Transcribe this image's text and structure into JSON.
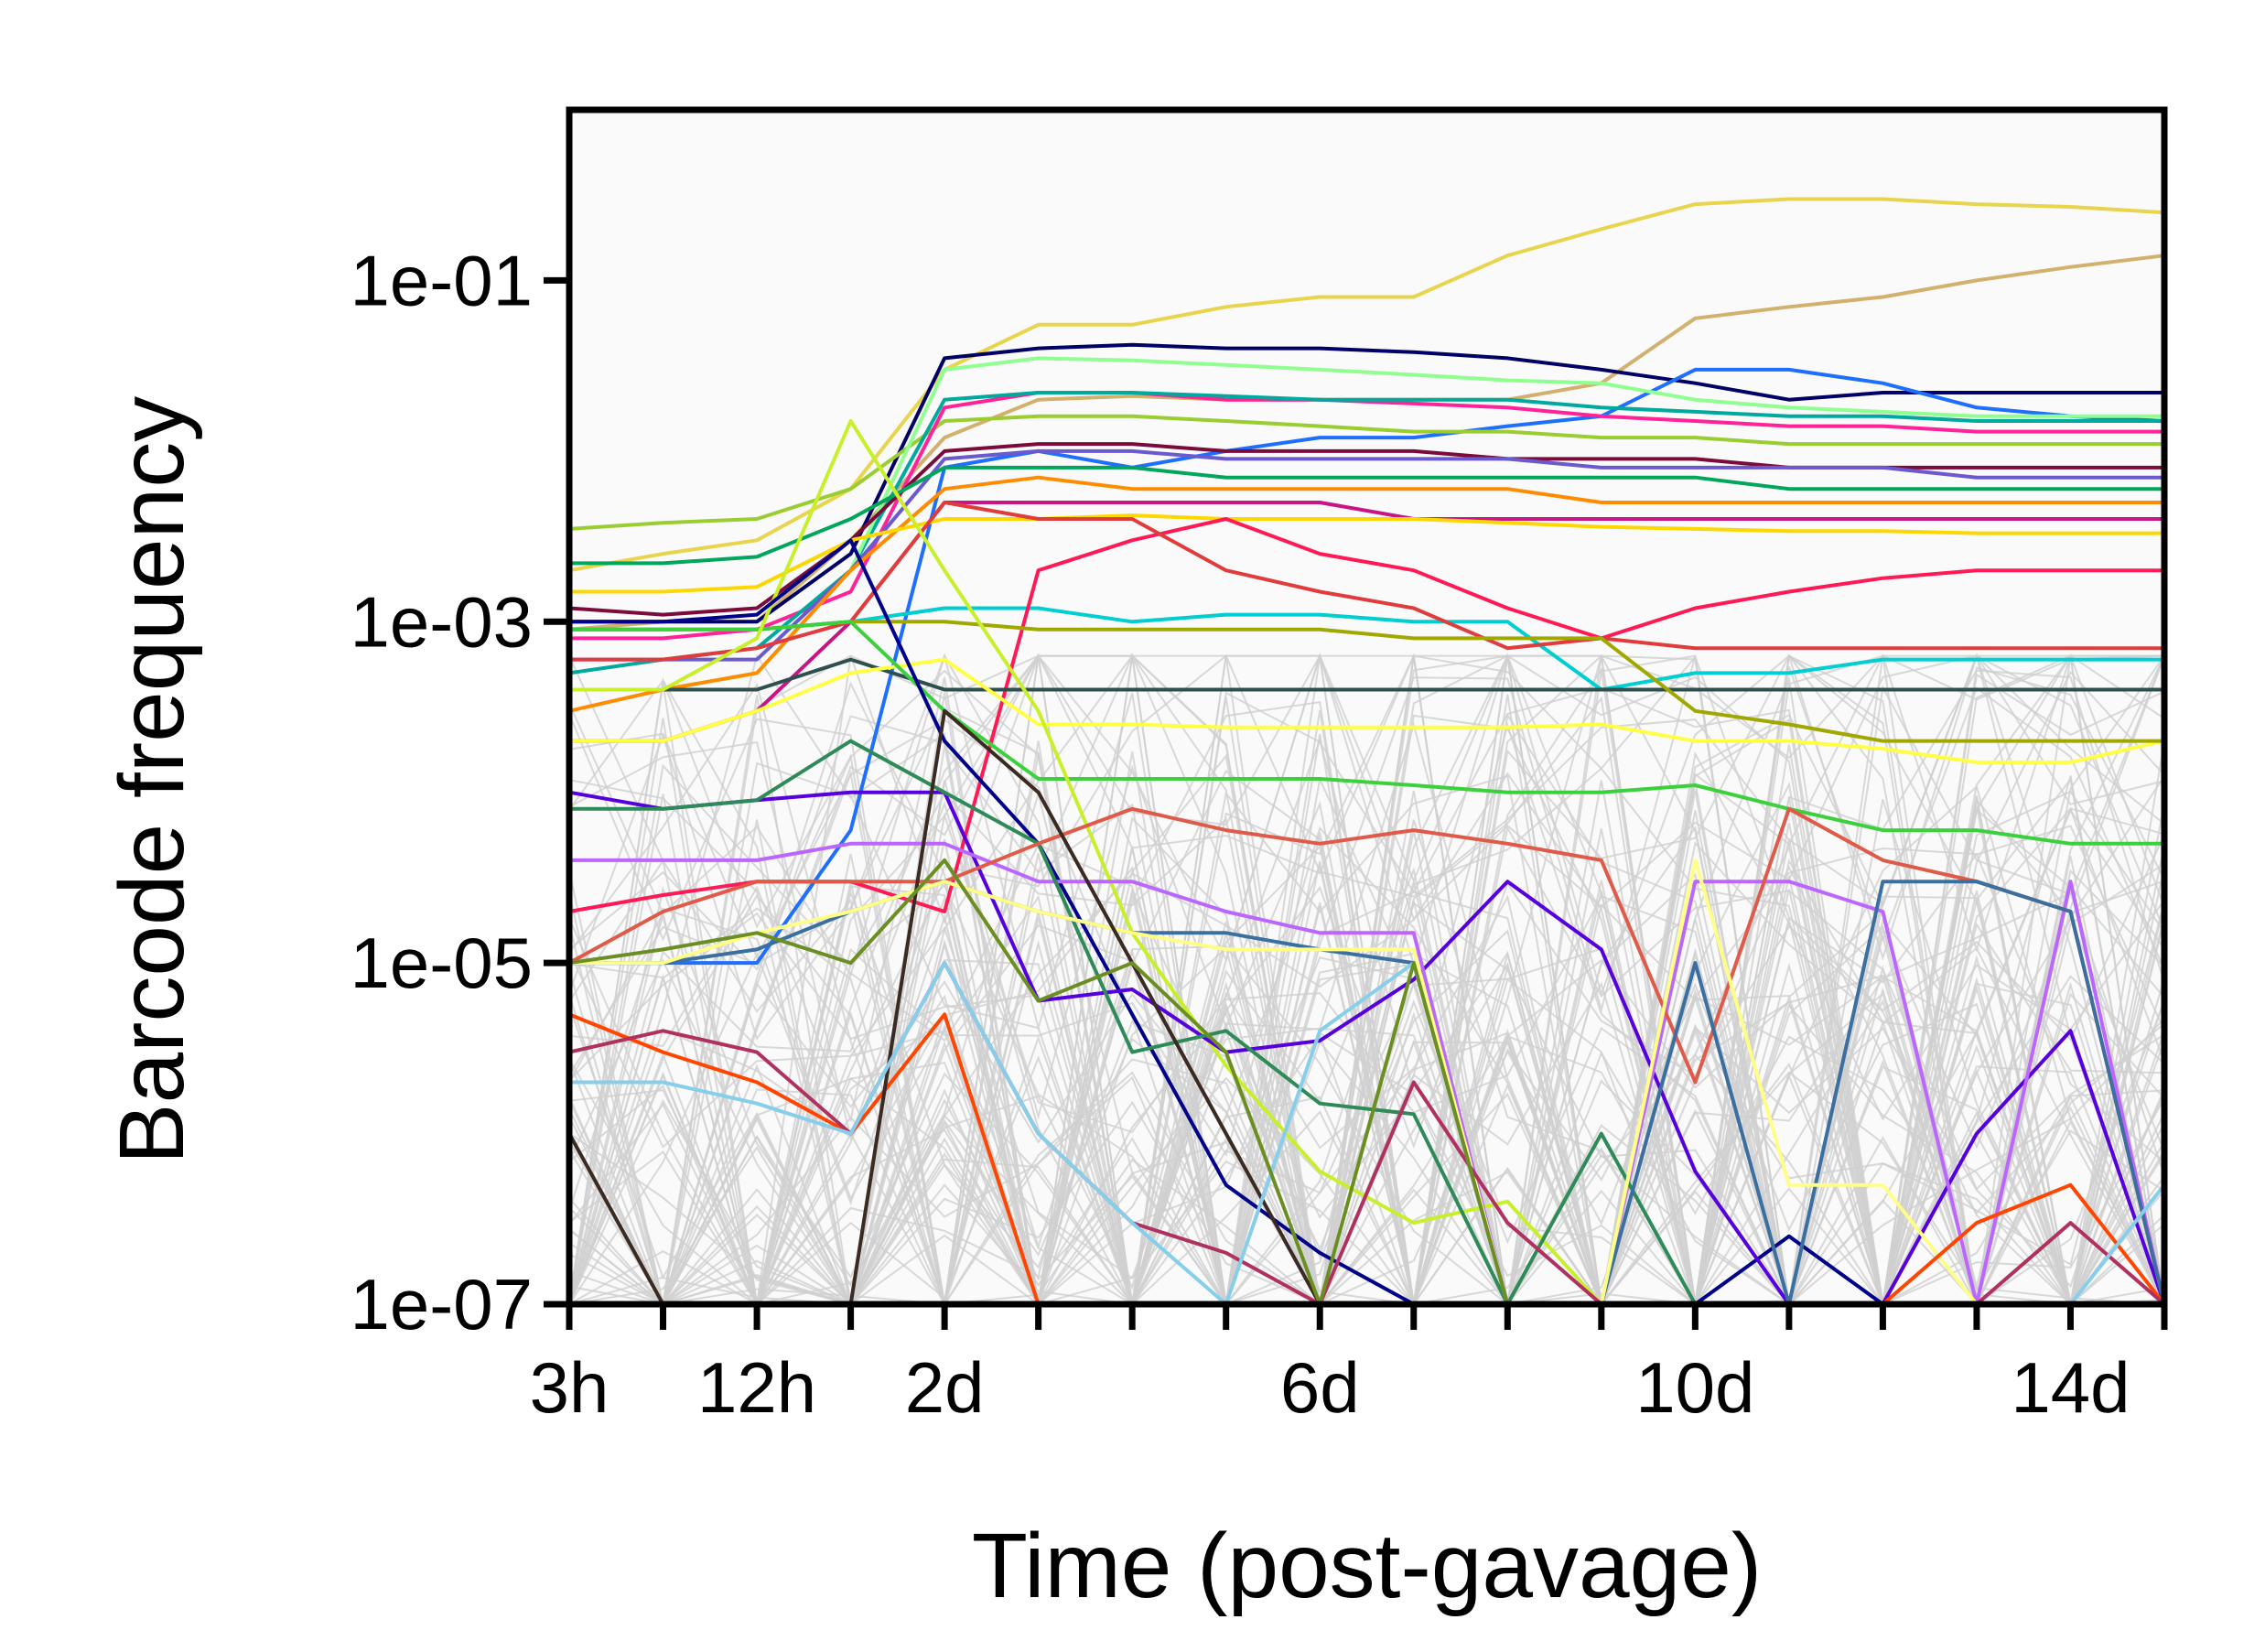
{
  "chart_data": {
    "type": "line",
    "title": "",
    "xlabel": "Time (post-gavage)",
    "ylabel": "Barcode frequency",
    "y_scale": "log",
    "ylim": [
      1e-07,
      1
    ],
    "x_points": [
      "3h",
      "6h",
      "12h",
      "1d",
      "2d",
      "3d",
      "4d",
      "5d",
      "6d",
      "7d",
      "8d",
      "9d",
      "10d",
      "11d",
      "12d",
      "13d",
      "14d",
      "15d"
    ],
    "x_tick_labels": [
      {
        "at": "3h",
        "label": "3h"
      },
      {
        "at": "12h",
        "label": "12h"
      },
      {
        "at": "2d",
        "label": "2d"
      },
      {
        "at": "6d",
        "label": "6d"
      },
      {
        "at": "10d",
        "label": "10d"
      },
      {
        "at": "14d",
        "label": "14d"
      }
    ],
    "y_ticks": [
      1e-07,
      1e-05,
      0.001,
      0.1
    ],
    "y_tick_labels": [
      "1e-07",
      "1e-05",
      "1e-03",
      "1e-01"
    ],
    "background_series_color": "#cfcfcf",
    "plot_background": "#fafafa",
    "grid": false,
    "legend": "none",
    "series": [
      {
        "color": "#e8d44d",
        "values": [
          0.002,
          0.0025,
          0.003,
          0.006,
          0.03,
          0.055,
          0.055,
          0.07,
          0.08,
          0.08,
          0.14,
          0.2,
          0.28,
          0.3,
          0.3,
          0.28,
          0.27,
          0.25
        ]
      },
      {
        "color": "#d2b06e",
        "values": [
          0.0009,
          0.001,
          0.001,
          0.003,
          0.012,
          0.02,
          0.021,
          0.02,
          0.02,
          0.02,
          0.02,
          0.025,
          0.06,
          0.07,
          0.08,
          0.1,
          0.12,
          0.14
        ]
      },
      {
        "color": "#000066",
        "values": [
          0.001,
          0.001,
          0.001,
          0.0025,
          0.035,
          0.04,
          0.042,
          0.04,
          0.04,
          0.038,
          0.035,
          0.03,
          0.025,
          0.02,
          0.022,
          0.022,
          0.022,
          0.022
        ]
      },
      {
        "color": "#1f6fff",
        "values": [
          1e-05,
          1e-05,
          1e-05,
          6e-05,
          0.008,
          0.01,
          0.008,
          0.01,
          0.012,
          0.012,
          0.014,
          0.016,
          0.03,
          0.03,
          0.025,
          0.018,
          0.016,
          0.015
        ]
      },
      {
        "color": "#9acd32",
        "values": [
          0.0035,
          0.0038,
          0.004,
          0.006,
          0.015,
          0.016,
          0.016,
          0.015,
          0.014,
          0.013,
          0.013,
          0.012,
          0.012,
          0.011,
          0.011,
          0.011,
          0.011,
          0.011
        ]
      },
      {
        "color": "#ff2299",
        "values": [
          0.0008,
          0.0008,
          0.0009,
          0.0015,
          0.018,
          0.022,
          0.022,
          0.02,
          0.02,
          0.019,
          0.018,
          0.016,
          0.015,
          0.014,
          0.014,
          0.013,
          0.013,
          0.013
        ]
      },
      {
        "color": "#00a99d",
        "values": [
          0.0005,
          0.0006,
          0.0007,
          0.002,
          0.02,
          0.022,
          0.022,
          0.021,
          0.02,
          0.02,
          0.02,
          0.018,
          0.017,
          0.016,
          0.016,
          0.015,
          0.015,
          0.015
        ]
      },
      {
        "color": "#8fff8f",
        "values": [
          0.0004,
          0.0004,
          0.0005,
          0.002,
          0.03,
          0.035,
          0.034,
          0.032,
          0.03,
          0.028,
          0.026,
          0.025,
          0.02,
          0.018,
          0.017,
          0.016,
          0.016,
          0.016
        ]
      },
      {
        "color": "#7a0b3b",
        "values": [
          0.0012,
          0.0011,
          0.0012,
          0.003,
          0.01,
          0.011,
          0.011,
          0.01,
          0.01,
          0.01,
          0.009,
          0.009,
          0.009,
          0.008,
          0.008,
          0.008,
          0.008,
          0.008
        ]
      },
      {
        "color": "#6a5acd",
        "values": [
          0.0006,
          0.0006,
          0.0006,
          0.002,
          0.009,
          0.01,
          0.01,
          0.009,
          0.009,
          0.009,
          0.009,
          0.008,
          0.008,
          0.008,
          0.008,
          0.007,
          0.007,
          0.007
        ]
      },
      {
        "color": "#00a65a",
        "values": [
          0.0022,
          0.0022,
          0.0024,
          0.004,
          0.008,
          0.008,
          0.008,
          0.007,
          0.007,
          0.007,
          0.007,
          0.007,
          0.007,
          0.006,
          0.006,
          0.006,
          0.006,
          0.006
        ]
      },
      {
        "color": "#ff8c00",
        "values": [
          0.0003,
          0.0004,
          0.0005,
          0.002,
          0.006,
          0.007,
          0.006,
          0.006,
          0.006,
          0.006,
          0.006,
          0.005,
          0.005,
          0.005,
          0.005,
          0.005,
          0.005,
          0.005
        ]
      },
      {
        "color": "#c71585",
        "values": [
          0.0002,
          0.0002,
          0.0003,
          0.001,
          0.005,
          0.005,
          0.005,
          0.005,
          0.005,
          0.004,
          0.004,
          0.004,
          0.004,
          0.004,
          0.004,
          0.004,
          0.004,
          0.004
        ]
      },
      {
        "color": "#ffd700",
        "values": [
          0.0015,
          0.0015,
          0.0016,
          0.003,
          0.004,
          0.004,
          0.0042,
          0.004,
          0.004,
          0.004,
          0.0038,
          0.0036,
          0.0035,
          0.0034,
          0.0034,
          0.0033,
          0.0033,
          0.0033
        ]
      },
      {
        "color": "#00ced1",
        "values": [
          0.0009,
          0.0009,
          0.0009,
          0.001,
          0.0012,
          0.0012,
          0.001,
          0.0011,
          0.0011,
          0.001,
          0.001,
          0.0004,
          0.0005,
          0.0005,
          0.0006,
          0.0006,
          0.0006,
          0.0006
        ]
      },
      {
        "color": "#ff1a55",
        "values": [
          2e-05,
          2.5e-05,
          3e-05,
          3e-05,
          2e-05,
          0.002,
          0.003,
          0.004,
          0.0025,
          0.002,
          0.0012,
          0.0008,
          0.0012,
          0.0015,
          0.0018,
          0.002,
          0.002,
          0.002
        ]
      },
      {
        "color": "#e03c3c",
        "values": [
          0.0006,
          0.0006,
          0.0007,
          0.001,
          0.005,
          0.004,
          0.004,
          0.002,
          0.0015,
          0.0012,
          0.0007,
          0.0008,
          0.0007,
          0.0007,
          0.0007,
          0.0007,
          0.0007,
          0.0007
        ]
      },
      {
        "color": "#2f4f4f",
        "values": [
          0.0004,
          0.0004,
          0.0004,
          0.0006,
          0.0004,
          0.0004,
          0.0004,
          0.0004,
          0.0004,
          0.0004,
          0.0004,
          0.0004,
          0.0004,
          0.0004,
          0.0004,
          0.0004,
          0.0004,
          0.0004
        ]
      },
      {
        "color": "#ffff44",
        "values": [
          0.0002,
          0.0002,
          0.0003,
          0.0005,
          0.0006,
          0.00025,
          0.00025,
          0.00024,
          0.00024,
          0.00024,
          0.00024,
          0.00025,
          0.0002,
          0.0002,
          0.00018,
          0.00015,
          0.00015,
          0.0002
        ]
      },
      {
        "color": "#a0a800",
        "values": [
          0.0009,
          0.0009,
          0.0009,
          0.001,
          0.001,
          0.0009,
          0.0009,
          0.0009,
          0.0009,
          0.0008,
          0.0008,
          0.0008,
          0.0003,
          0.00025,
          0.0002,
          0.0002,
          0.0002,
          0.0002
        ]
      },
      {
        "color": "#3cd13c",
        "values": [
          0.0009,
          0.0009,
          0.0009,
          0.001,
          0.0003,
          0.00012,
          0.00012,
          0.00012,
          0.00012,
          0.00011,
          0.0001,
          0.0001,
          0.00011,
          8e-05,
          6e-05,
          6e-05,
          5e-05,
          5e-05
        ]
      },
      {
        "color": "#c8f02a",
        "values": [
          0.0004,
          0.0004,
          0.0008,
          0.015,
          0.002,
          0.0003,
          1.5e-05,
          2.5e-06,
          6e-07,
          3e-07,
          4e-07,
          1e-07,
          1e-07,
          1e-07,
          1e-07,
          1e-07,
          1e-07,
          1e-07
        ]
      },
      {
        "color": "#00008b",
        "values": [
          0.001,
          0.001,
          0.0011,
          0.003,
          0.0002,
          5e-05,
          5e-06,
          5e-07,
          2e-07,
          1e-07,
          1e-07,
          1e-07,
          1e-07,
          2.5e-07,
          1e-07,
          1e-07,
          1e-07,
          1e-07
        ]
      },
      {
        "color": "#5500dd",
        "values": [
          0.0001,
          8e-05,
          9e-05,
          0.0001,
          0.0001,
          6e-06,
          7e-06,
          3e-06,
          3.5e-06,
          8e-06,
          3e-05,
          1.2e-05,
          6e-07,
          1e-07,
          1e-07,
          1e-06,
          4e-06,
          1e-07
        ]
      },
      {
        "color": "#bb66ff",
        "values": [
          4e-05,
          4e-05,
          4e-05,
          5e-05,
          5e-05,
          3e-05,
          3e-05,
          2e-05,
          1.5e-05,
          1.5e-05,
          1e-07,
          1e-07,
          3e-05,
          3e-05,
          2e-05,
          1e-07,
          3e-05,
          1e-07
        ]
      },
      {
        "color": "#2e8b57",
        "values": [
          8e-05,
          8e-05,
          9e-05,
          0.0002,
          0.0001,
          5e-05,
          3e-06,
          4e-06,
          1.5e-06,
          1.3e-06,
          1e-07,
          1e-06,
          1e-07,
          1e-07,
          1e-07,
          1e-07,
          1e-07,
          1e-07
        ]
      },
      {
        "color": "#e05a4a",
        "values": [
          1e-05,
          2e-05,
          3e-05,
          3e-05,
          3e-05,
          5e-05,
          8e-05,
          6e-05,
          5e-05,
          6e-05,
          5e-05,
          4e-05,
          2e-06,
          8e-05,
          4e-05,
          3e-05,
          2e-05,
          1e-07
        ]
      },
      {
        "color": "#3a6f9f",
        "values": [
          1e-05,
          1e-05,
          1.2e-05,
          2e-05,
          3e-05,
          2e-05,
          1.5e-05,
          1.5e-05,
          1.2e-05,
          1e-05,
          1e-07,
          1e-07,
          1e-05,
          1e-07,
          3e-05,
          3e-05,
          2e-05,
          1e-07
        ]
      },
      {
        "color": "#ffff88",
        "values": [
          1e-05,
          1e-05,
          1.5e-05,
          2e-05,
          3e-05,
          2e-05,
          1.5e-05,
          1.2e-05,
          1.2e-05,
          1.2e-05,
          1e-07,
          1e-07,
          4e-05,
          5e-07,
          5e-07,
          1e-07,
          1e-07,
          1e-07
        ]
      },
      {
        "color": "#ff4500",
        "values": [
          5e-06,
          3e-06,
          2e-06,
          1e-06,
          5e-06,
          1e-07,
          1e-07,
          1e-07,
          1e-07,
          1e-07,
          1e-07,
          1e-07,
          1e-07,
          1e-07,
          1e-07,
          3e-07,
          5e-07,
          1e-07
        ]
      },
      {
        "color": "#3b2a22",
        "values": [
          1e-06,
          1e-07,
          1e-07,
          1e-07,
          0.0003,
          0.0001,
          1e-05,
          1e-06,
          1e-07,
          1e-07,
          1e-07,
          1e-07,
          1e-07,
          1e-07,
          1e-07,
          1e-07,
          1e-07,
          1e-07
        ]
      },
      {
        "color": "#b03060",
        "values": [
          3e-06,
          4e-06,
          3e-06,
          1e-06,
          1e-05,
          1e-06,
          3e-07,
          2e-07,
          1e-07,
          2e-06,
          3e-07,
          1e-07,
          1e-07,
          1e-07,
          1e-07,
          1e-07,
          3e-07,
          1e-07
        ]
      },
      {
        "color": "#87ceeb",
        "values": [
          2e-06,
          2e-06,
          1.5e-06,
          1e-06,
          1e-05,
          1e-06,
          3e-07,
          1e-07,
          4e-06,
          1e-05,
          1e-07,
          1e-07,
          1e-07,
          1e-07,
          1e-07,
          1e-07,
          1e-07,
          5e-07
        ]
      },
      {
        "color": "#6b8e23",
        "values": [
          1e-05,
          1.2e-05,
          1.5e-05,
          1e-05,
          4e-05,
          6e-06,
          1e-05,
          3e-06,
          1e-07,
          1e-05,
          1e-07,
          1e-07,
          1e-07,
          1e-07,
          1e-07,
          1e-07,
          1e-07,
          1e-07
        ]
      }
    ],
    "background_series_count": 90
  }
}
